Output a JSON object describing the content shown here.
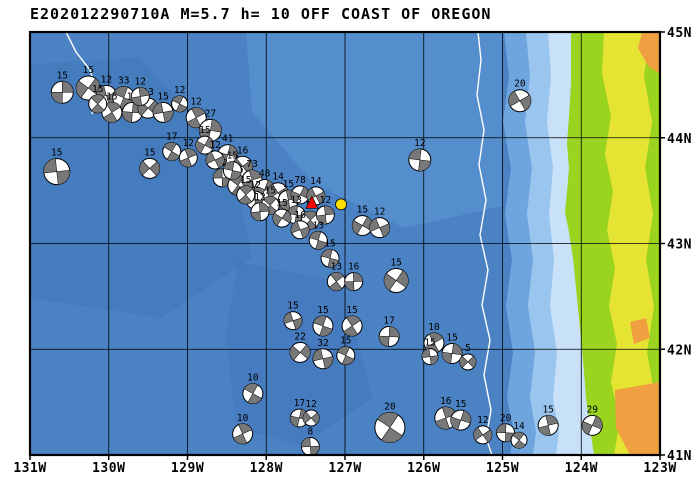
{
  "title": "E202012290710A M=5.7 h= 10 OFF COAST OF OREGON",
  "event_info": {
    "id": "E202012290710A",
    "magnitude": "M=5.7",
    "depth": "h= 10",
    "region": "OFF COAST OF OREGON"
  },
  "map": {
    "lon_range": [
      -131,
      -123
    ],
    "lat_range": [
      45,
      41
    ],
    "lon_ticks": [
      {
        "label": "131W",
        "value": -131
      },
      {
        "label": "130W",
        "value": -130
      },
      {
        "label": "129W",
        "value": -129
      },
      {
        "label": "128W",
        "value": -128
      },
      {
        "label": "127W",
        "value": -127
      },
      {
        "label": "126W",
        "value": -126
      },
      {
        "label": "125W",
        "value": -125
      },
      {
        "label": "124W",
        "value": -124
      },
      {
        "label": "123W",
        "value": -123
      }
    ],
    "lat_ticks": [
      {
        "label": "45N",
        "value": 45
      },
      {
        "label": "44N",
        "value": 44
      },
      {
        "label": "43N",
        "value": 43
      },
      {
        "label": "42N",
        "value": 42
      },
      {
        "label": "41N",
        "value": 41
      }
    ],
    "colors": {
      "ocean_deep": "#4a82c4",
      "ocean_dark": "#3f72b4",
      "ocean_light_ne": "#5f99d6",
      "band2": "#6fa5de",
      "band3": "#9ac5ee",
      "band4": "#c8e0f8",
      "contour_white": "#ffffff",
      "land_green": "#9ad41f",
      "land_yellow": "#e6e432",
      "land_orange": "#f0a040",
      "ball_gray": "#787878",
      "ball_white": "#ffffff",
      "grid": "#000000",
      "event_red": "#ff0000",
      "event_yellow": "#ffdf00"
    },
    "event_markers": {
      "epicenter_triangle": {
        "lon": -127.42,
        "lat": 43.38
      },
      "event_location_circle": {
        "lon": -127.05,
        "lat": 43.37
      }
    },
    "focal_mechanisms": [
      {
        "lon": -130.59,
        "lat": 44.43,
        "r": 11,
        "depth": "15"
      },
      {
        "lon": -130.26,
        "lat": 44.47,
        "r": 12,
        "depth": "15"
      },
      {
        "lon": -130.03,
        "lat": 44.4,
        "r": 10,
        "depth": "12"
      },
      {
        "lon": -129.81,
        "lat": 44.38,
        "r": 11,
        "depth": "33"
      },
      {
        "lon": -129.96,
        "lat": 44.24,
        "r": 10,
        "depth": "15"
      },
      {
        "lon": -129.7,
        "lat": 44.24,
        "r": 10,
        "depth": "16"
      },
      {
        "lon": -129.5,
        "lat": 44.28,
        "r": 10,
        "depth": "13"
      },
      {
        "lon": -129.31,
        "lat": 44.24,
        "r": 10,
        "depth": "15"
      },
      {
        "lon": -129.1,
        "lat": 44.32,
        "r": 8,
        "depth": "12"
      },
      {
        "lon": -128.89,
        "lat": 44.19,
        "r": 10,
        "depth": "12"
      },
      {
        "lon": -128.71,
        "lat": 44.07,
        "r": 11,
        "depth": "27"
      },
      {
        "lon": -129.48,
        "lat": 43.71,
        "r": 10,
        "depth": "15"
      },
      {
        "lon": -130.66,
        "lat": 43.68,
        "r": 13,
        "depth": "15"
      },
      {
        "lon": -129.2,
        "lat": 43.87,
        "r": 9,
        "depth": "17"
      },
      {
        "lon": -128.99,
        "lat": 43.81,
        "r": 9,
        "depth": "12"
      },
      {
        "lon": -128.49,
        "lat": 43.84,
        "r": 10,
        "depth": "41"
      },
      {
        "lon": -128.3,
        "lat": 43.73,
        "r": 10,
        "depth": "16"
      },
      {
        "lon": -128.56,
        "lat": 43.62,
        "r": 9,
        "depth": "12"
      },
      {
        "lon": -128.36,
        "lat": 43.55,
        "r": 10,
        "depth": "15"
      },
      {
        "lon": -128.18,
        "lat": 43.6,
        "r": 10,
        "depth": "73"
      },
      {
        "lon": -128.02,
        "lat": 43.51,
        "r": 10,
        "depth": "48"
      },
      {
        "lon": -127.85,
        "lat": 43.48,
        "r": 10,
        "depth": "14"
      },
      {
        "lon": -128.14,
        "lat": 43.41,
        "r": 9,
        "depth": "12"
      },
      {
        "lon": -127.95,
        "lat": 43.36,
        "r": 9,
        "depth": "15"
      },
      {
        "lon": -127.72,
        "lat": 43.41,
        "r": 10,
        "depth": "15"
      },
      {
        "lon": -127.57,
        "lat": 43.46,
        "r": 9,
        "depth": "78"
      },
      {
        "lon": -127.37,
        "lat": 43.45,
        "r": 9,
        "depth": "14"
      },
      {
        "lon": -127.62,
        "lat": 43.27,
        "r": 9,
        "depth": "13"
      },
      {
        "lon": -127.44,
        "lat": 43.22,
        "r": 9,
        "depth": "15"
      },
      {
        "lon": -127.25,
        "lat": 43.27,
        "r": 9,
        "depth": "12"
      },
      {
        "lon": -126.78,
        "lat": 43.17,
        "r": 10,
        "depth": "15"
      },
      {
        "lon": -126.56,
        "lat": 43.15,
        "r": 10,
        "depth": "12"
      },
      {
        "lon": -127.19,
        "lat": 42.86,
        "r": 9,
        "depth": "15"
      },
      {
        "lon": -127.11,
        "lat": 42.64,
        "r": 9,
        "depth": "13"
      },
      {
        "lon": -126.89,
        "lat": 42.64,
        "r": 9,
        "depth": "16"
      },
      {
        "lon": -126.35,
        "lat": 42.65,
        "r": 12,
        "depth": "15"
      },
      {
        "lon": -127.66,
        "lat": 42.27,
        "r": 9,
        "depth": "15"
      },
      {
        "lon": -127.28,
        "lat": 42.22,
        "r": 10,
        "depth": "15"
      },
      {
        "lon": -126.91,
        "lat": 42.22,
        "r": 10,
        "depth": "15"
      },
      {
        "lon": -126.44,
        "lat": 42.12,
        "r": 10,
        "depth": "17"
      },
      {
        "lon": -127.57,
        "lat": 41.97,
        "r": 10,
        "depth": "22"
      },
      {
        "lon": -127.28,
        "lat": 41.91,
        "r": 10,
        "depth": "32"
      },
      {
        "lon": -126.99,
        "lat": 41.94,
        "r": 9,
        "depth": "15"
      },
      {
        "lon": -125.87,
        "lat": 42.06,
        "r": 10,
        "depth": "10"
      },
      {
        "lon": -125.64,
        "lat": 41.96,
        "r": 10,
        "depth": "15"
      },
      {
        "lon": -125.44,
        "lat": 41.88,
        "r": 8,
        "depth": "5"
      },
      {
        "lon": -125.92,
        "lat": 41.93,
        "r": 8,
        "depth": "15"
      },
      {
        "lon": -128.17,
        "lat": 41.58,
        "r": 10,
        "depth": "10"
      },
      {
        "lon": -128.3,
        "lat": 41.2,
        "r": 10,
        "depth": "10"
      },
      {
        "lon": -127.58,
        "lat": 41.35,
        "r": 9,
        "depth": "17"
      },
      {
        "lon": -127.43,
        "lat": 41.35,
        "r": 8,
        "depth": "12"
      },
      {
        "lon": -127.44,
        "lat": 41.08,
        "r": 9,
        "depth": "8"
      },
      {
        "lon": -126.43,
        "lat": 41.26,
        "r": 15,
        "depth": "20"
      },
      {
        "lon": -125.72,
        "lat": 41.35,
        "r": 11,
        "depth": "16"
      },
      {
        "lon": -125.53,
        "lat": 41.33,
        "r": 10,
        "depth": "15"
      },
      {
        "lon": -125.25,
        "lat": 41.19,
        "r": 9,
        "depth": "12"
      },
      {
        "lon": -124.96,
        "lat": 41.21,
        "r": 9,
        "depth": "20"
      },
      {
        "lon": -124.79,
        "lat": 41.14,
        "r": 8,
        "depth": "14"
      },
      {
        "lon": -124.42,
        "lat": 41.28,
        "r": 10,
        "depth": "15"
      },
      {
        "lon": -123.86,
        "lat": 41.28,
        "r": 10,
        "depth": "29"
      },
      {
        "lon": -124.78,
        "lat": 44.35,
        "r": 11,
        "depth": "20"
      },
      {
        "lon": -126.05,
        "lat": 43.79,
        "r": 11,
        "depth": "12"
      },
      {
        "lon": -130.14,
        "lat": 44.32,
        "r": 9,
        "depth": "15"
      },
      {
        "lon": -129.6,
        "lat": 44.39,
        "r": 9,
        "depth": "12"
      },
      {
        "lon": -128.78,
        "lat": 43.93,
        "r": 9,
        "depth": "15"
      },
      {
        "lon": -128.65,
        "lat": 43.79,
        "r": 9,
        "depth": "12"
      },
      {
        "lon": -128.43,
        "lat": 43.69,
        "r": 9,
        "depth": "15"
      },
      {
        "lon": -128.26,
        "lat": 43.46,
        "r": 9,
        "depth": "15"
      },
      {
        "lon": -128.08,
        "lat": 43.3,
        "r": 9,
        "depth": "12"
      },
      {
        "lon": -127.8,
        "lat": 43.24,
        "r": 9,
        "depth": "15"
      },
      {
        "lon": -127.57,
        "lat": 43.13,
        "r": 9,
        "depth": "16"
      },
      {
        "lon": -127.34,
        "lat": 43.03,
        "r": 9,
        "depth": "13"
      }
    ]
  }
}
